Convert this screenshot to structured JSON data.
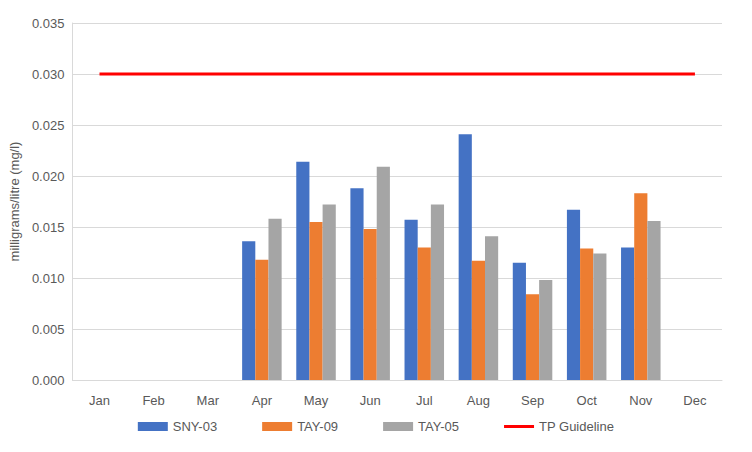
{
  "chart_data": {
    "type": "bar",
    "y_label": "milligrams/litre (mg/l)",
    "categories": [
      "Jan",
      "Feb",
      "Mar",
      "Apr",
      "May",
      "Jun",
      "Jul",
      "Aug",
      "Sep",
      "Oct",
      "Nov",
      "Dec"
    ],
    "series": [
      {
        "name": "SNY-03",
        "type": "bar",
        "color": "#4472C4",
        "values": [
          null,
          null,
          null,
          0.0136,
          0.0214,
          0.0188,
          0.0157,
          0.0241,
          0.0115,
          0.0167,
          0.013,
          null
        ]
      },
      {
        "name": "TAY-09",
        "type": "bar",
        "color": "#ED7D31",
        "values": [
          null,
          null,
          null,
          0.0118,
          0.0155,
          0.0148,
          0.013,
          0.0117,
          0.0084,
          0.0129,
          0.0183,
          null
        ]
      },
      {
        "name": "TAY-05",
        "type": "bar",
        "color": "#A5A5A5",
        "values": [
          null,
          null,
          null,
          0.0158,
          0.0172,
          0.0209,
          0.0172,
          0.0141,
          0.0098,
          0.0124,
          0.0156,
          null
        ]
      },
      {
        "name": "TP Guideline",
        "type": "line",
        "color": "#FF0000",
        "line_style": "solid",
        "values": [
          0.03,
          0.03,
          0.03,
          0.03,
          0.03,
          0.03,
          0.03,
          0.03,
          0.03,
          0.03,
          0.03,
          0.03
        ]
      }
    ],
    "ylim": [
      0,
      0.035
    ],
    "yticks": [
      {
        "value": 0,
        "label": "0.000"
      },
      {
        "value": 0.005,
        "label": "0.005"
      },
      {
        "value": 0.01,
        "label": "0.010"
      },
      {
        "value": 0.015,
        "label": "0.015"
      },
      {
        "value": 0.02,
        "label": "0.020"
      },
      {
        "value": 0.025,
        "label": "0.025"
      },
      {
        "value": 0.03,
        "label": "0.030"
      },
      {
        "value": 0.035,
        "label": "0.035"
      }
    ],
    "grid": true,
    "legend": "bottom"
  }
}
